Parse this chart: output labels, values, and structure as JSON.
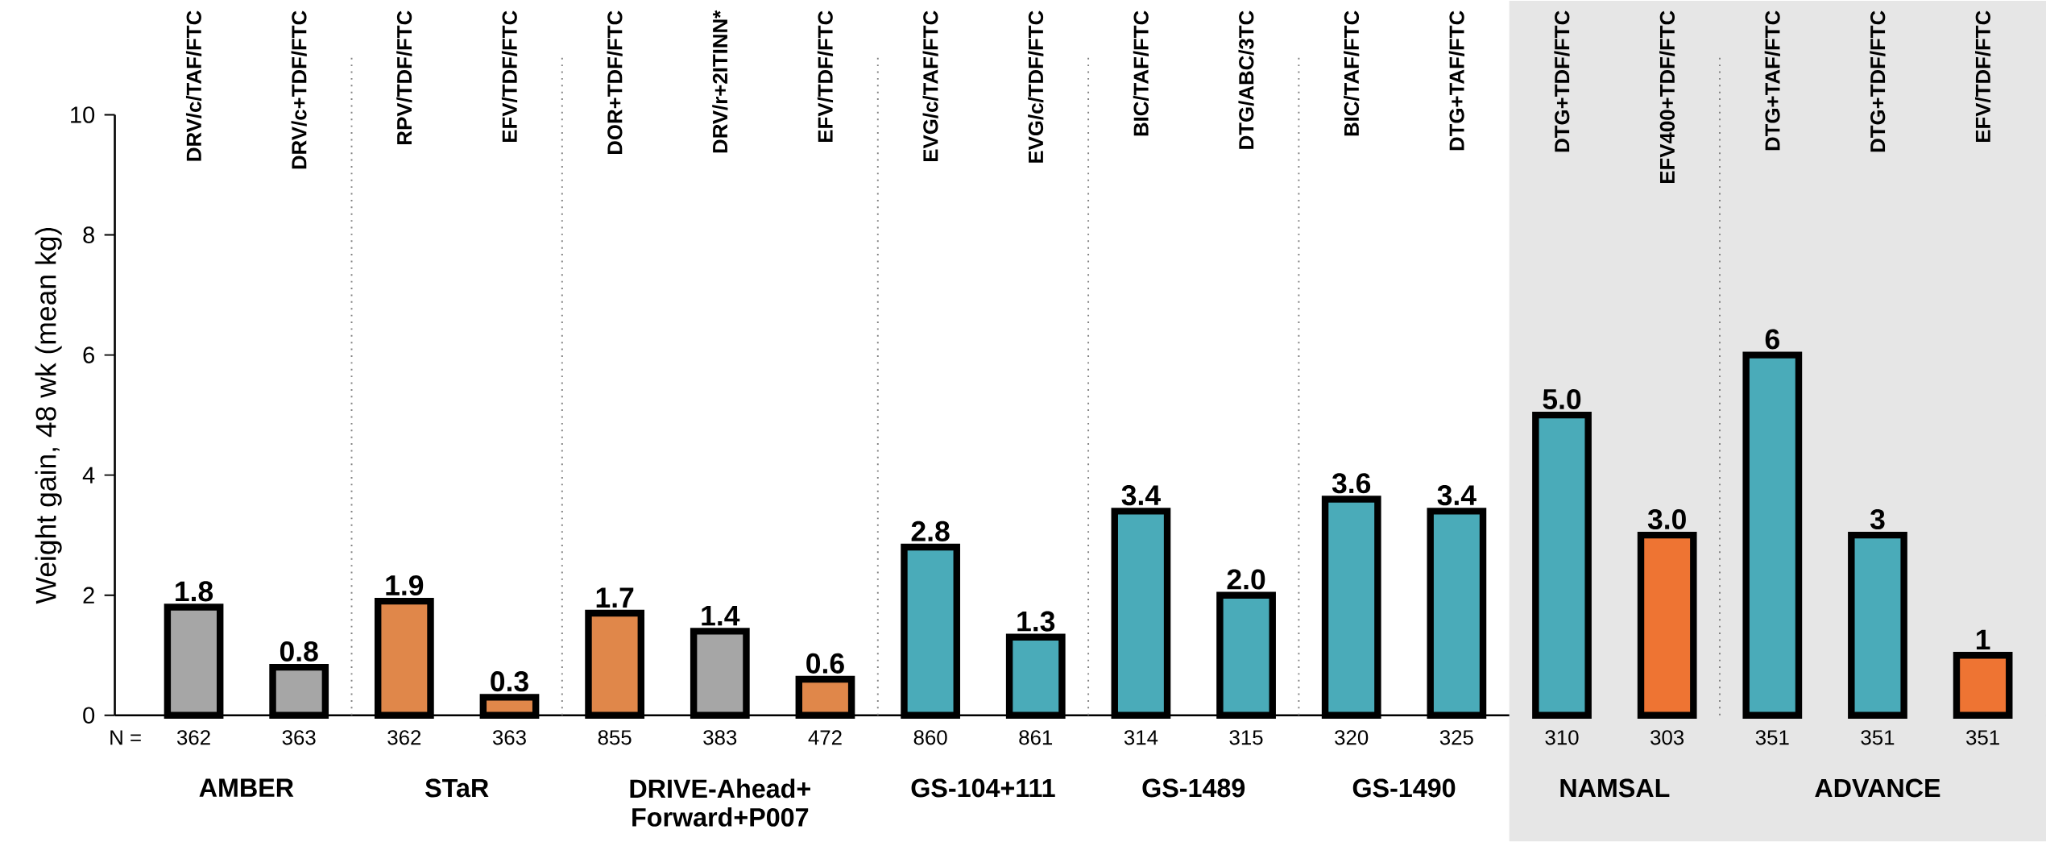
{
  "chart_data": {
    "type": "bar",
    "ylabel": "Weight gain, 48 wk (mean kg)",
    "categories": [
      "DRV/c/TAF/FTC",
      "DRV/c+TDF/FTC",
      "RPV/TDF/FTC",
      "EFV/TDF/FTC",
      "DOR+TDF/FTC",
      "DRV/r+2ITINN*",
      "EFV/TDF/FTC",
      "EVG/c/TAF/FTC",
      "EVG/c/TDF/FTC",
      "BIC/TAF/FTC",
      "DTG/ABC/3TC",
      "BIC/TAF/FTC",
      "DTG+TAF/FTC",
      "DTG+TDF/FTC",
      "EFV400+TDF/FTC",
      "DTG+TAF/FTC",
      "DTG+TDF/FTC",
      "EFV/TDF/FTC"
    ],
    "series": [
      {
        "name": "AMBER",
        "colors": [
          "#a6a6a6",
          "#a6a6a6",
          null,
          null,
          null,
          null,
          null,
          null,
          null,
          null,
          null,
          null,
          null,
          null,
          null,
          null,
          null,
          null
        ],
        "values": [
          1.8,
          0.8,
          null,
          null,
          null,
          null,
          null,
          null,
          null,
          null,
          null,
          null,
          null,
          null,
          null,
          null,
          null,
          null
        ],
        "value_labels": [
          "1.8",
          "0.8",
          null,
          null,
          null,
          null,
          null,
          null,
          null,
          null,
          null,
          null,
          null,
          null,
          null,
          null,
          null,
          null
        ]
      },
      {
        "name": "STaR",
        "colors": [
          null,
          null,
          "#e0874a",
          "#e0874a",
          null,
          null,
          null,
          null,
          null,
          null,
          null,
          null,
          null,
          null,
          null,
          null,
          null,
          null
        ],
        "values": [
          null,
          null,
          1.9,
          0.3,
          null,
          null,
          null,
          null,
          null,
          null,
          null,
          null,
          null,
          null,
          null,
          null,
          null,
          null
        ],
        "value_labels": [
          null,
          null,
          "1.9",
          "0.3",
          null,
          null,
          null,
          null,
          null,
          null,
          null,
          null,
          null,
          null,
          null,
          null,
          null,
          null
        ]
      },
      {
        "name": "DRIVE-Ahead+ Forward+P007",
        "colors": [
          null,
          null,
          null,
          null,
          "#e0874a",
          "#a6a6a6",
          "#e0874a",
          null,
          null,
          null,
          null,
          null,
          null,
          null,
          null,
          null,
          null,
          null
        ],
        "values": [
          null,
          null,
          null,
          null,
          1.7,
          1.4,
          0.6,
          null,
          null,
          null,
          null,
          null,
          null,
          null,
          null,
          null,
          null,
          null
        ],
        "value_labels": [
          null,
          null,
          null,
          null,
          "1.7",
          "1.4",
          "0.6",
          null,
          null,
          null,
          null,
          null,
          null,
          null,
          null,
          null,
          null,
          null
        ]
      },
      {
        "name": "GS-104+111",
        "colors": [
          null,
          null,
          null,
          null,
          null,
          null,
          null,
          "#4aabb9",
          "#4aabb9",
          null,
          null,
          null,
          null,
          null,
          null,
          null,
          null,
          null
        ],
        "values": [
          null,
          null,
          null,
          null,
          null,
          null,
          null,
          2.8,
          1.3,
          null,
          null,
          null,
          null,
          null,
          null,
          null,
          null,
          null
        ],
        "value_labels": [
          null,
          null,
          null,
          null,
          null,
          null,
          null,
          "2.8",
          "1.3",
          null,
          null,
          null,
          null,
          null,
          null,
          null,
          null,
          null
        ]
      },
      {
        "name": "GS-1489",
        "colors": [
          null,
          null,
          null,
          null,
          null,
          null,
          null,
          null,
          null,
          "#4aabb9",
          "#4aabb9",
          null,
          null,
          null,
          null,
          null,
          null,
          null
        ],
        "values": [
          null,
          null,
          null,
          null,
          null,
          null,
          null,
          null,
          null,
          3.4,
          2.0,
          null,
          null,
          null,
          null,
          null,
          null,
          null
        ],
        "value_labels": [
          null,
          null,
          null,
          null,
          null,
          null,
          null,
          null,
          null,
          "3.4",
          "2.0",
          null,
          null,
          null,
          null,
          null,
          null,
          null
        ]
      },
      {
        "name": "GS-1490",
        "colors": [
          null,
          null,
          null,
          null,
          null,
          null,
          null,
          null,
          null,
          null,
          null,
          "#4aabb9",
          "#4aabb9",
          null,
          null,
          null,
          null,
          null
        ],
        "values": [
          null,
          null,
          null,
          null,
          null,
          null,
          null,
          null,
          null,
          null,
          null,
          3.6,
          3.4,
          null,
          null,
          null,
          null,
          null
        ],
        "value_labels": [
          null,
          null,
          null,
          null,
          null,
          null,
          null,
          null,
          null,
          null,
          null,
          "3.6",
          "3.4",
          null,
          null,
          null,
          null,
          null
        ]
      },
      {
        "name": "NAMSAL",
        "colors": [
          null,
          null,
          null,
          null,
          null,
          null,
          null,
          null,
          null,
          null,
          null,
          null,
          null,
          "#4aabb9",
          "#ee7433",
          null,
          null,
          null
        ],
        "values": [
          null,
          null,
          null,
          null,
          null,
          null,
          null,
          null,
          null,
          null,
          null,
          null,
          null,
          5.0,
          3.0,
          null,
          null,
          null
        ],
        "value_labels": [
          null,
          null,
          null,
          null,
          null,
          null,
          null,
          null,
          null,
          null,
          null,
          null,
          null,
          "5.0",
          "3.0",
          null,
          null,
          null
        ]
      },
      {
        "name": "ADVANCE",
        "colors": [
          null,
          null,
          null,
          null,
          null,
          null,
          null,
          null,
          null,
          null,
          null,
          null,
          null,
          null,
          null,
          "#4aabb9",
          "#4aabb9",
          "#ee7433"
        ],
        "values": [
          null,
          null,
          null,
          null,
          null,
          null,
          null,
          null,
          null,
          null,
          null,
          null,
          null,
          null,
          null,
          6,
          3,
          1
        ],
        "value_labels": [
          null,
          null,
          null,
          null,
          null,
          null,
          null,
          null,
          null,
          null,
          null,
          null,
          null,
          null,
          null,
          "6",
          "3",
          "1"
        ]
      }
    ],
    "ylim": [
      0,
      10
    ],
    "yticks": [
      0,
      2,
      4,
      6,
      8,
      10
    ],
    "annotations": [
      "N =",
      "362",
      "363",
      "362",
      "363",
      "855",
      "383",
      "472",
      "860",
      "861",
      "314",
      "315",
      "320",
      "325",
      "310",
      "303",
      "351",
      "351",
      "351"
    ]
  }
}
